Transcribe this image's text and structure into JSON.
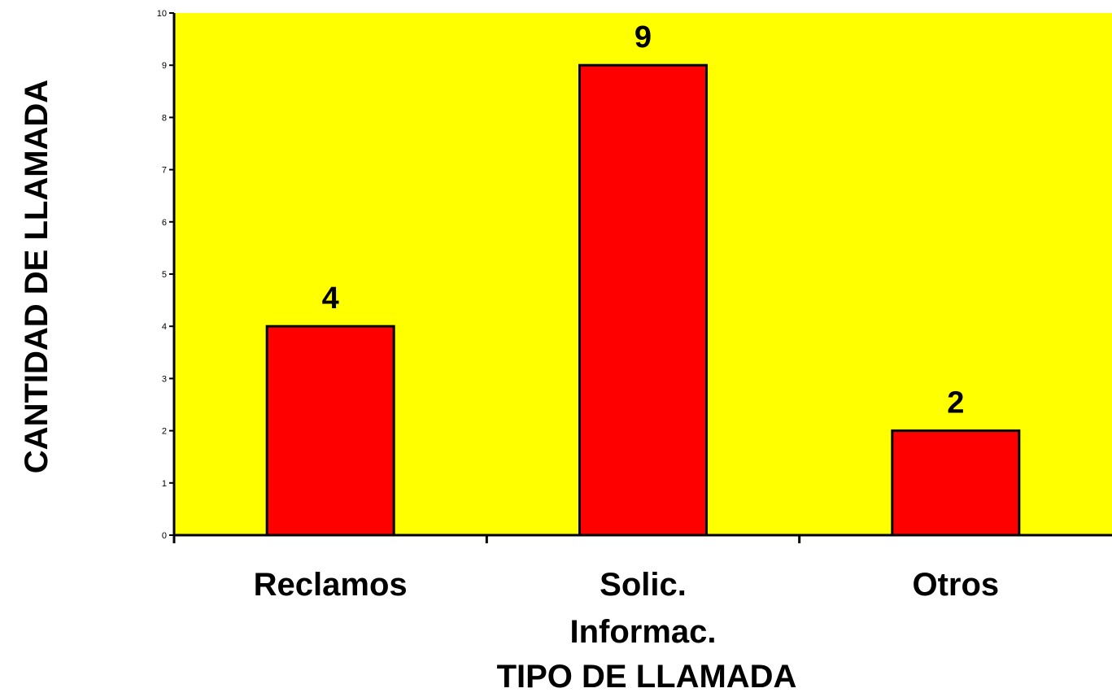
{
  "chart_data": {
    "type": "bar",
    "title": "",
    "categories": [
      "Reclamos",
      "Solic. Informac.",
      "Otros"
    ],
    "category_lines": [
      [
        "Reclamos"
      ],
      [
        "Solic.",
        "Informac."
      ],
      [
        "Otros"
      ]
    ],
    "values": [
      4,
      9,
      2
    ],
    "data_labels": [
      "4",
      "9",
      "2"
    ],
    "xlabel": "TIPO DE LLAMADA",
    "ylabel": "CANTIDAD DE LLAMADA",
    "ylim": [
      0,
      10
    ],
    "yticks": [
      "0",
      "1",
      "2",
      "3",
      "4",
      "5",
      "6",
      "7",
      "8",
      "9",
      "10"
    ],
    "grid": false,
    "colors": {
      "plot_background": "#FFFF00",
      "bar_fill": "#FF0000",
      "bar_stroke": "#000000"
    }
  }
}
